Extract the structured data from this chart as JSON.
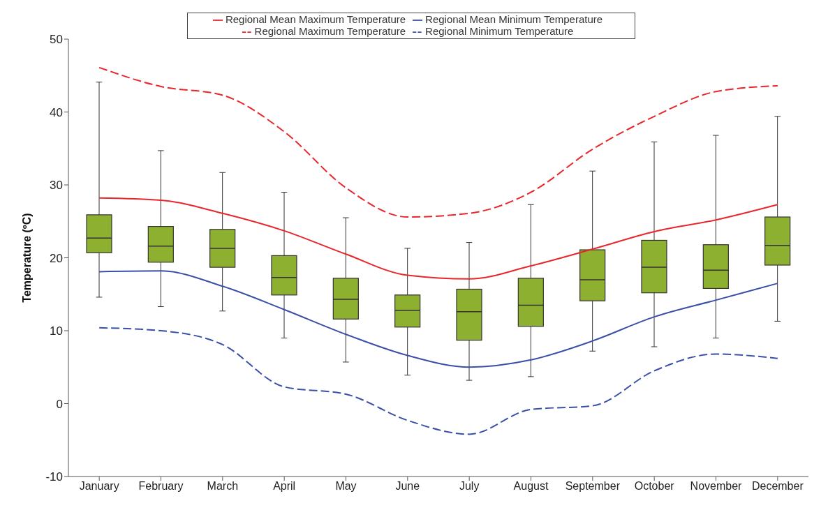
{
  "chart_data": {
    "type": "box",
    "ylabel": "Temperature (ºC)",
    "categories": [
      "January",
      "February",
      "March",
      "April",
      "May",
      "June",
      "July",
      "August",
      "September",
      "October",
      "November",
      "December"
    ],
    "color": "#8db030",
    "boxes": [
      {
        "low": 14.6,
        "q1": 20.7,
        "median": 22.7,
        "q3": 25.9,
        "high": 44.1
      },
      {
        "low": 13.3,
        "q1": 19.4,
        "median": 21.6,
        "q3": 24.3,
        "high": 34.7
      },
      {
        "low": 12.7,
        "q1": 18.7,
        "median": 21.3,
        "q3": 23.9,
        "high": 31.7
      },
      {
        "low": 9.0,
        "q1": 14.9,
        "median": 17.3,
        "q3": 20.3,
        "high": 29.0
      },
      {
        "low": 5.7,
        "q1": 11.6,
        "median": 14.3,
        "q3": 17.2,
        "high": 25.5
      },
      {
        "low": 3.9,
        "q1": 10.5,
        "median": 12.8,
        "q3": 14.9,
        "high": 21.3
      },
      {
        "low": 3.2,
        "q1": 8.7,
        "median": 12.6,
        "q3": 15.7,
        "high": 22.1
      },
      {
        "low": 3.7,
        "q1": 10.6,
        "median": 13.5,
        "q3": 17.2,
        "high": 27.3
      },
      {
        "low": 7.2,
        "q1": 14.1,
        "median": 17.0,
        "q3": 21.1,
        "high": 31.9
      },
      {
        "low": 7.8,
        "q1": 15.2,
        "median": 18.7,
        "q3": 22.4,
        "high": 35.9
      },
      {
        "low": 9.0,
        "q1": 15.8,
        "median": 18.3,
        "q3": 21.8,
        "high": 36.8
      },
      {
        "low": 11.3,
        "q1": 19.0,
        "median": 21.7,
        "q3": 25.6,
        "high": 39.4
      }
    ],
    "series": [
      {
        "name": "Regional Mean Maximum Temperature",
        "type": "line",
        "color": "#e8262b",
        "line_style": "solid",
        "values": [
          28.2,
          27.9,
          26.1,
          23.7,
          20.5,
          17.6,
          17.1,
          18.9,
          21.2,
          23.6,
          25.2,
          27.3
        ]
      },
      {
        "name": "Regional Mean Minimum Temperature",
        "type": "line",
        "color": "#3a4fa8",
        "line_style": "solid",
        "values": [
          18.1,
          18.2,
          16.1,
          12.9,
          9.5,
          6.6,
          5.0,
          6.0,
          8.6,
          11.9,
          14.2,
          16.5
        ]
      },
      {
        "name": "Regional Maximum Temperature",
        "type": "line",
        "color": "#e8262b",
        "line_style": "dashed",
        "values": [
          46.1,
          43.5,
          42.3,
          37.3,
          29.6,
          25.6,
          26.1,
          29.0,
          34.9,
          39.4,
          42.8,
          43.6
        ]
      },
      {
        "name": "Regional Minimum Temperature",
        "type": "line",
        "color": "#3a4fa8",
        "line_style": "dashed",
        "values": [
          10.4,
          10.0,
          8.1,
          2.3,
          1.3,
          -2.3,
          -4.2,
          -0.8,
          -0.3,
          4.5,
          6.8,
          6.2
        ]
      }
    ],
    "ylim": [
      -10,
      50
    ],
    "yticks": [
      -10,
      0,
      10,
      20,
      30,
      40,
      50
    ],
    "marker": "none",
    "legend": "top"
  }
}
